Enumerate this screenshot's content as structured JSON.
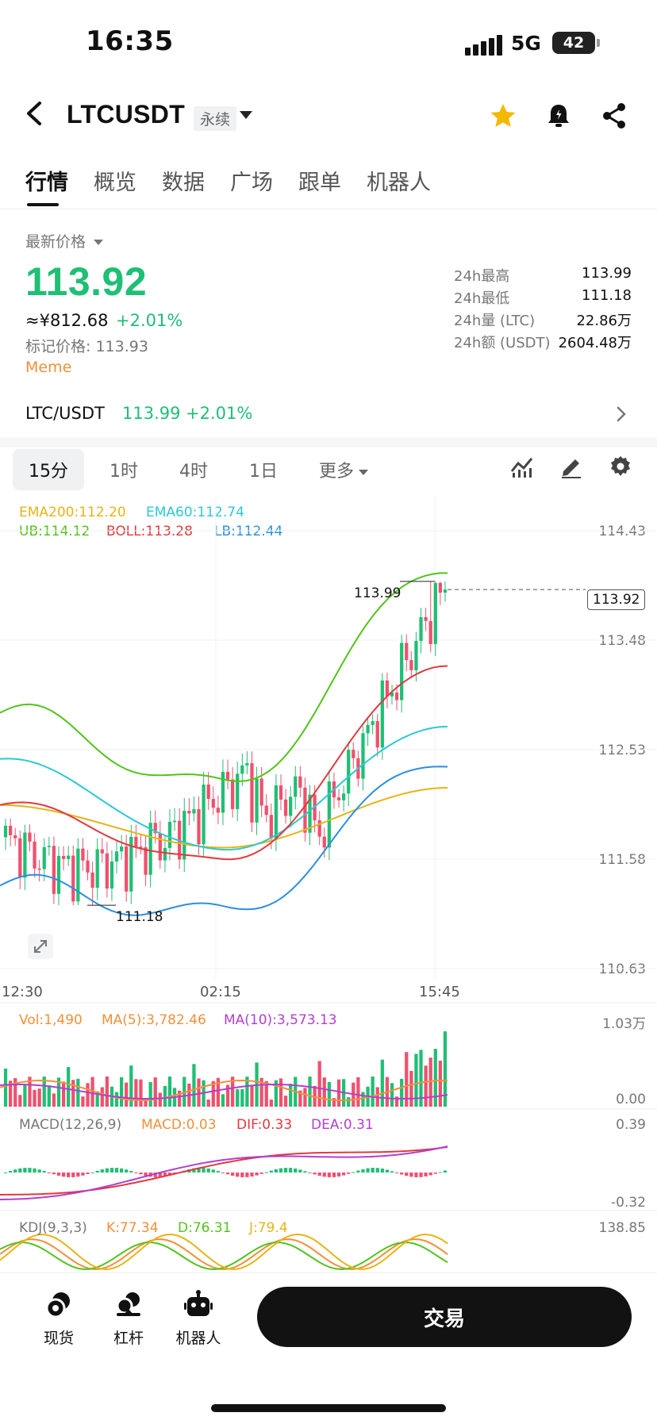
{
  "status_bar": {
    "time": "16:35",
    "network": "5G",
    "battery": "42"
  },
  "header": {
    "pair": "LTCUSDT",
    "badge": "永续",
    "icons": [
      "back-chevron-icon",
      "star-icon",
      "bell-icon",
      "share-icon"
    ]
  },
  "tabs": [
    "行情",
    "概览",
    "数据",
    "广场",
    "跟单",
    "机器人"
  ],
  "price": {
    "label": "最新价格",
    "last": "113.92",
    "cny": "≈¥812.68",
    "change": "+2.01%",
    "mark": "标记价格: 113.93",
    "tag": "Meme"
  },
  "stats": [
    {
      "label": "24h最高",
      "value": "113.99"
    },
    {
      "label": "24h最低",
      "value": "111.18"
    },
    {
      "label": "24h量 (LTC)",
      "value": "22.86万"
    },
    {
      "label": "24h额 (USDT)",
      "value": "2604.48万"
    }
  ],
  "spot": {
    "pair": "LTC/USDT",
    "price": "113.99",
    "change": "+2.01%"
  },
  "intervals": [
    "15分",
    "1时",
    "4时",
    "1日",
    "更多"
  ],
  "colors": {
    "up": "#1fbf75",
    "down": "#f0506e",
    "ema200": "#e7b416",
    "ema60": "#2cc9d0",
    "ub": "#52c41a",
    "boll": "#e0393e",
    "lb": "#2b8fe0"
  },
  "main_indicators": {
    "ema200": "EMA200:112.20",
    "ema60": "EMA60:112.74",
    "ub": "UB:114.12",
    "boll": "BOLL:113.28",
    "lb": "LB:112.44"
  },
  "price_axis": [
    "114.43",
    "113.48",
    "112.53",
    "111.58",
    "110.63"
  ],
  "last_price_tag": "113.92",
  "high_marker": "113.99",
  "low_marker": "111.18",
  "time_axis": [
    "12:30",
    "02:15",
    "15:45"
  ],
  "volume": {
    "vol": "Vol:1,490",
    "ma5": "MA(5):3,782.46",
    "ma10": "MA(10):3,573.13",
    "axis_top": "1.03万",
    "axis_bottom": "0.00"
  },
  "macd": {
    "label": "MACD(12,26,9)",
    "macd": "MACD:0.03",
    "dif": "DIF:0.33",
    "dea": "DEA:0.31",
    "axis_top": "0.39",
    "axis_bottom": "-0.32"
  },
  "kdj": {
    "label": "KDJ(9,3,3)",
    "k": "K:77.34",
    "d": "D:76.31",
    "j": "J:79.4",
    "axis_top": "138.85"
  },
  "bottom_nav": [
    {
      "label": "现货",
      "icon": "spot-coins-icon"
    },
    {
      "label": "杠杆",
      "icon": "margin-icon"
    },
    {
      "label": "机器人",
      "icon": "robot-icon"
    }
  ],
  "trade_button": "交易",
  "chart_data": {
    "type": "line",
    "x": [
      "12:30",
      "02:15",
      "15:45"
    ],
    "ylim": [
      110.63,
      114.43
    ],
    "series": [
      {
        "name": "EMA200",
        "values": [
          112.05,
          111.68,
          112.2
        ]
      },
      {
        "name": "EMA60",
        "values": [
          112.45,
          111.65,
          112.74
        ]
      },
      {
        "name": "UB",
        "values": [
          112.85,
          112.2,
          114.12
        ]
      },
      {
        "name": "BOLL",
        "values": [
          112.05,
          111.55,
          113.28
        ]
      },
      {
        "name": "LB",
        "values": [
          111.35,
          111.1,
          112.44
        ]
      }
    ],
    "last": 113.92,
    "high": 113.99,
    "low": 111.18
  }
}
